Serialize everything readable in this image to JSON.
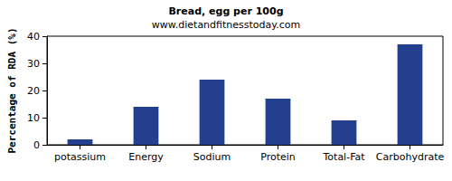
{
  "chart_data": {
    "type": "bar",
    "title": "Bread, egg per 100g",
    "subtitle": "www.dietandfitnesstoday.com",
    "y_label": "Percentage of RDA (%)",
    "categories": [
      "potassium",
      "Energy",
      "Sodium",
      "Protein",
      "Total-Fat",
      "Carbohydrate"
    ],
    "values": [
      2,
      14,
      24,
      17,
      9,
      37
    ],
    "color": "#253f8f",
    "ylim": [
      0,
      40
    ],
    "yticks": [
      0,
      10,
      20,
      30,
      40
    ],
    "grid": false
  }
}
